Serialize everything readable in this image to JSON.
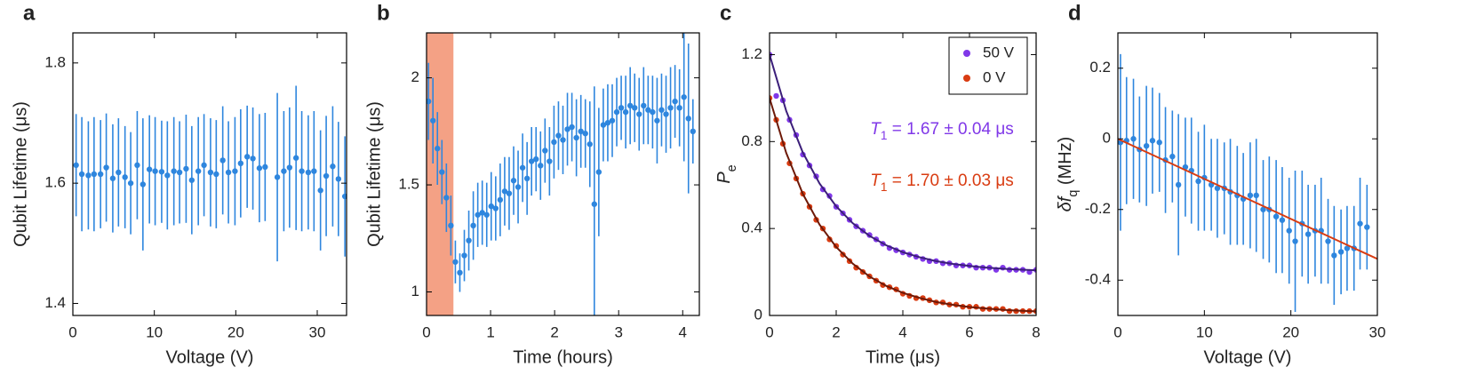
{
  "chart_data": [
    {
      "type": "scatter",
      "label": "a",
      "xlabel": "Voltage (V)",
      "ylabel": "Qubit Lifetime (μs)",
      "color": "#2e86de",
      "xlim": [
        0,
        33.6
      ],
      "ylim": [
        1.38,
        1.85
      ],
      "xticks": [
        0,
        10,
        20,
        30
      ],
      "yticks": [
        1.4,
        1.6,
        1.8
      ],
      "x": [
        0.4,
        1.1,
        1.9,
        2.6,
        3.4,
        4.1,
        4.9,
        5.6,
        6.4,
        7.1,
        7.9,
        8.6,
        9.4,
        10.1,
        10.9,
        11.6,
        12.4,
        13.1,
        13.9,
        14.6,
        15.4,
        16.1,
        16.9,
        17.6,
        18.4,
        19.1,
        19.9,
        20.6,
        21.4,
        22.1,
        22.9,
        23.6,
        25.1,
        25.9,
        26.6,
        27.4,
        28.1,
        28.9,
        29.6,
        30.4,
        31.1,
        31.9,
        32.6,
        33.4
      ],
      "values": [
        1.63,
        1.615,
        1.613,
        1.615,
        1.615,
        1.626,
        1.608,
        1.618,
        1.61,
        1.6,
        1.63,
        1.598,
        1.623,
        1.62,
        1.619,
        1.613,
        1.62,
        1.618,
        1.624,
        1.605,
        1.62,
        1.63,
        1.618,
        1.615,
        1.638,
        1.618,
        1.62,
        1.633,
        1.644,
        1.641,
        1.625,
        1.627,
        1.61,
        1.62,
        1.626,
        1.642,
        1.62,
        1.618,
        1.62,
        1.588,
        1.612,
        1.628,
        1.607,
        1.578
      ],
      "errors": [
        0.085,
        0.095,
        0.09,
        0.095,
        0.09,
        0.09,
        0.09,
        0.09,
        0.085,
        0.085,
        0.09,
        0.11,
        0.09,
        0.09,
        0.085,
        0.09,
        0.09,
        0.085,
        0.09,
        0.09,
        0.09,
        0.085,
        0.09,
        0.09,
        0.09,
        0.085,
        0.09,
        0.09,
        0.085,
        0.085,
        0.09,
        0.09,
        0.14,
        0.1,
        0.1,
        0.12,
        0.1,
        0.095,
        0.1,
        0.1,
        0.1,
        0.1,
        0.095,
        0.1
      ]
    },
    {
      "type": "scatter",
      "label": "b",
      "xlabel": "Time (hours)",
      "ylabel": "Qubit Lifetime (μs)",
      "color": "#2e86de",
      "shade": [
        0,
        0.42
      ],
      "shade_color": "#f4a185",
      "xlim": [
        0,
        4.26
      ],
      "ylim": [
        0.89,
        2.21
      ],
      "xticks": [
        0,
        1,
        2,
        3,
        4
      ],
      "yticks": [
        1,
        1.5,
        2
      ],
      "x": [
        0.03,
        0.1,
        0.17,
        0.24,
        0.31,
        0.38,
        0.45,
        0.52,
        0.59,
        0.66,
        0.73,
        0.8,
        0.87,
        0.94,
        1.01,
        1.08,
        1.15,
        1.22,
        1.29,
        1.36,
        1.43,
        1.5,
        1.57,
        1.64,
        1.71,
        1.78,
        1.85,
        1.92,
        1.99,
        2.06,
        2.13,
        2.2,
        2.27,
        2.34,
        2.41,
        2.48,
        2.55,
        2.62,
        2.69,
        2.76,
        2.83,
        2.9,
        2.97,
        3.04,
        3.11,
        3.18,
        3.25,
        3.32,
        3.39,
        3.46,
        3.53,
        3.6,
        3.67,
        3.74,
        3.81,
        3.88,
        3.95,
        4.02,
        4.09,
        4.16
      ],
      "values": [
        1.89,
        1.8,
        1.67,
        1.56,
        1.44,
        1.31,
        1.14,
        1.09,
        1.17,
        1.24,
        1.31,
        1.36,
        1.37,
        1.36,
        1.4,
        1.39,
        1.43,
        1.47,
        1.46,
        1.52,
        1.49,
        1.58,
        1.53,
        1.61,
        1.62,
        1.59,
        1.66,
        1.61,
        1.7,
        1.73,
        1.71,
        1.76,
        1.77,
        1.72,
        1.75,
        1.74,
        1.69,
        1.41,
        1.56,
        1.78,
        1.79,
        1.8,
        1.84,
        1.86,
        1.84,
        1.87,
        1.86,
        1.83,
        1.87,
        1.85,
        1.84,
        1.8,
        1.85,
        1.83,
        1.86,
        1.89,
        1.86,
        1.91,
        1.81,
        1.75
      ],
      "errors": [
        0.18,
        0.2,
        0.17,
        0.15,
        0.16,
        0.14,
        0.1,
        0.09,
        0.12,
        0.14,
        0.16,
        0.15,
        0.15,
        0.15,
        0.16,
        0.15,
        0.17,
        0.16,
        0.17,
        0.16,
        0.17,
        0.16,
        0.17,
        0.16,
        0.15,
        0.16,
        0.15,
        0.16,
        0.17,
        0.16,
        0.16,
        0.17,
        0.16,
        0.18,
        0.17,
        0.16,
        0.2,
        0.55,
        0.3,
        0.17,
        0.18,
        0.17,
        0.16,
        0.15,
        0.17,
        0.18,
        0.16,
        0.17,
        0.18,
        0.16,
        0.17,
        0.2,
        0.17,
        0.18,
        0.19,
        0.17,
        0.18,
        0.3,
        0.35,
        0.15
      ]
    },
    {
      "type": "scatter",
      "label": "c",
      "xlabel": "Time (μs)",
      "ylabel": {
        "main": "P",
        "sub": "e"
      },
      "xlim": [
        0,
        8
      ],
      "ylim": [
        0,
        1.3
      ],
      "xticks": [
        0,
        2,
        4,
        6,
        8
      ],
      "yticks": [
        0,
        0.4,
        0.8,
        1.2
      ],
      "legend": "upper right",
      "x": [
        0,
        0.2,
        0.4,
        0.6,
        0.8,
        1,
        1.2,
        1.4,
        1.6,
        1.8,
        2,
        2.2,
        2.4,
        2.6,
        2.8,
        3,
        3.2,
        3.4,
        3.6,
        3.8,
        4,
        4.2,
        4.4,
        4.6,
        4.8,
        5,
        5.2,
        5.4,
        5.6,
        5.8,
        6,
        6.2,
        6.4,
        6.6,
        6.8,
        7,
        7.2,
        7.4,
        7.6,
        7.8,
        8
      ],
      "fit_x": [
        0,
        0.5,
        1,
        1.5,
        2,
        2.5,
        3,
        3.5,
        4,
        4.5,
        5,
        5.5,
        6,
        6.5,
        7,
        7.5,
        8
      ],
      "series": [
        {
          "name": "50 V",
          "color": "#8038e8",
          "fit_color": "#3c1f7a",
          "values": [
            1.2,
            1.01,
            0.99,
            0.9,
            0.83,
            0.74,
            0.69,
            0.64,
            0.58,
            0.55,
            0.5,
            0.47,
            0.44,
            0.41,
            0.39,
            0.37,
            0.35,
            0.33,
            0.31,
            0.3,
            0.29,
            0.28,
            0.27,
            0.26,
            0.25,
            0.25,
            0.24,
            0.24,
            0.23,
            0.23,
            0.23,
            0.22,
            0.22,
            0.22,
            0.21,
            0.22,
            0.21,
            0.21,
            0.21,
            0.2,
            0.21
          ],
          "fit": [
            1.2,
            0.941,
            0.749,
            0.607,
            0.502,
            0.424,
            0.366,
            0.323,
            0.291,
            0.268,
            0.25,
            0.237,
            0.228,
            0.22,
            0.215,
            0.211,
            0.208
          ]
        },
        {
          "name": "0 V",
          "color": "#d93c12",
          "fit_color": "#6e1a08",
          "values": [
            1.0,
            0.9,
            0.79,
            0.7,
            0.63,
            0.56,
            0.5,
            0.44,
            0.4,
            0.35,
            0.32,
            0.28,
            0.25,
            0.22,
            0.2,
            0.18,
            0.16,
            0.14,
            0.13,
            0.12,
            0.1,
            0.09,
            0.08,
            0.08,
            0.07,
            0.06,
            0.06,
            0.05,
            0.05,
            0.04,
            0.04,
            0.04,
            0.03,
            0.03,
            0.03,
            0.03,
            0.02,
            0.02,
            0.02,
            0.02,
            0.02
          ],
          "fit": [
            1.0,
            0.748,
            0.559,
            0.418,
            0.315,
            0.238,
            0.179,
            0.136,
            0.104,
            0.081,
            0.062,
            0.049,
            0.039,
            0.032,
            0.026,
            0.022,
            0.019
          ]
        }
      ],
      "annotations": [
        {
          "main": "T",
          "sub": "1",
          "rest": " = 1.67 ± 0.04 μs",
          "color": "#8038e8"
        },
        {
          "main": "T",
          "sub": "1",
          "rest": " = 1.70 ± 0.03 μs",
          "color": "#d93c12"
        }
      ]
    },
    {
      "type": "scatter",
      "label": "d",
      "xlabel": "Voltage (V)",
      "ylabel": {
        "main": "δf",
        "sub": "q",
        "rest": "  (MHz)"
      },
      "color": "#2e86de",
      "xlim": [
        0,
        30
      ],
      "ylim": [
        -0.5,
        0.3
      ],
      "xticks": [
        0,
        10,
        20,
        30
      ],
      "yticks": [
        -0.4,
        -0.2,
        0,
        0.2
      ],
      "x": [
        0.3,
        1,
        1.8,
        2.5,
        3.3,
        4,
        4.8,
        5.5,
        6.3,
        7,
        7.8,
        8.5,
        9.3,
        10,
        10.8,
        11.5,
        12.3,
        13,
        13.8,
        14.5,
        15.3,
        16,
        16.8,
        17.5,
        18.3,
        19,
        19.8,
        20.5,
        21.3,
        22,
        22.8,
        23.5,
        24.3,
        25,
        25.8,
        26.5,
        27.3,
        28,
        28.8
      ],
      "values": [
        -0.01,
        -0.005,
        0,
        -0.03,
        -0.02,
        -0.005,
        -0.01,
        -0.06,
        -0.05,
        -0.13,
        -0.08,
        -0.09,
        -0.12,
        -0.11,
        -0.13,
        -0.14,
        -0.14,
        -0.15,
        -0.16,
        -0.17,
        -0.16,
        -0.16,
        -0.2,
        -0.2,
        -0.22,
        -0.23,
        -0.26,
        -0.29,
        -0.24,
        -0.27,
        -0.26,
        -0.26,
        -0.29,
        -0.33,
        -0.32,
        -0.31,
        -0.31,
        -0.24,
        -0.25
      ],
      "errors": [
        0.25,
        0.18,
        0.17,
        0.15,
        0.17,
        0.15,
        0.14,
        0.15,
        0.13,
        0.2,
        0.14,
        0.15,
        0.14,
        0.15,
        0.13,
        0.14,
        0.13,
        0.15,
        0.14,
        0.13,
        0.15,
        0.16,
        0.14,
        0.15,
        0.16,
        0.15,
        0.15,
        0.2,
        0.15,
        0.14,
        0.13,
        0.15,
        0.12,
        0.14,
        0.12,
        0.12,
        0.12,
        0.13,
        0.12
      ],
      "fit": {
        "x": [
          0,
          30
        ],
        "values": [
          0,
          -0.34
        ],
        "color": "#d93c12"
      }
    }
  ]
}
